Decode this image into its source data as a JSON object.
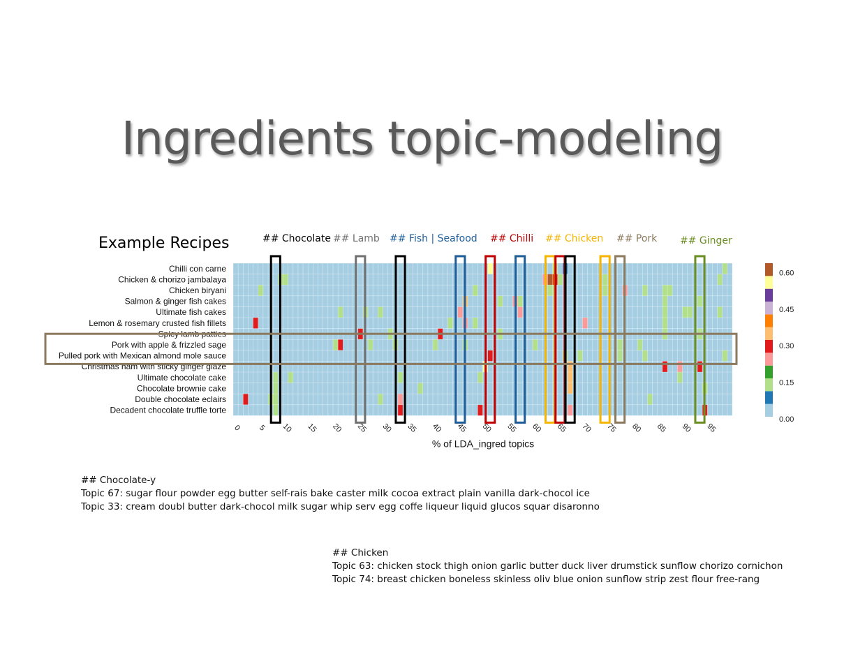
{
  "page": {
    "title": "Ingredients topic-modeling",
    "subtitle": "Example Recipes"
  },
  "topic_groups": [
    {
      "label": "## Chocolate",
      "color": "#000000",
      "left": 376
    },
    {
      "label": "## Lamb",
      "color": "#707070",
      "left": 477
    },
    {
      "label": "## Fish | Seafood",
      "color": "#1f5d99",
      "left": 558
    },
    {
      "label": "## Chilli",
      "color": "#c00000",
      "left": 702
    },
    {
      "label": "## Chicken",
      "color": "#f5b400",
      "left": 781
    },
    {
      "label": "## Pork",
      "color": "#8b7a5e",
      "left": 883
    },
    {
      "label": "## Ginger",
      "color": "#6b8e23",
      "left": 974
    }
  ],
  "notes": {
    "chocolate": {
      "heading": "## Chocolate-y",
      "lines": [
        "Topic 67: sugar flour powder egg butter self-rais bake caster milk cocoa extract plain vanilla dark-chocol ice",
        "Topic 33: cream doubl butter dark-chocol milk sugar whip serv egg coffe liqueur liquid glucos squar disaronno"
      ]
    },
    "chicken": {
      "heading": "## Chicken",
      "lines": [
        "Topic 63: chicken stock thigh onion garlic butter duck liver drumstick sunflow chorizo cornichon",
        "Topic 74: breast chicken boneless skinless oliv blue onion sunflow strip zest flour free-rang"
      ]
    }
  },
  "chart_data": {
    "type": "heatmap",
    "xlabel": "% of LDA_ingred topics",
    "x_ticks": [
      0,
      5,
      10,
      15,
      20,
      25,
      30,
      35,
      40,
      45,
      50,
      55,
      60,
      65,
      70,
      75,
      80,
      85,
      90,
      95
    ],
    "n_topics": 100,
    "recipes": [
      "Chilli con carne",
      "Chicken & chorizo jambalaya",
      "Chicken biryani",
      "Salmon & ginger fish cakes",
      "Ultimate fish cakes",
      "Lemon & rosemary crusted fish fillets",
      "Spicy lamb patties",
      "Pork with apple & frizzled sage",
      "Pulled pork with Mexican almond mole sauce",
      "Christmas ham with sticky ginger glaze",
      "Ultimate chocolate cake",
      "Chocolate brownie cake",
      "Double chocolate eclairs",
      "Decadent chocolate truffle torte"
    ],
    "legend": {
      "ticks": [
        0.6,
        0.45,
        0.3,
        0.15,
        0.0
      ],
      "tick_labels": [
        "0.60",
        "0.45",
        "0.30",
        "0.15",
        "0.00"
      ],
      "colors": [
        "#a6cee3",
        "#1f78b4",
        "#b2df8a",
        "#33a02c",
        "#fb9a99",
        "#e31a1c",
        "#fdbf6f",
        "#ff7f00",
        "#cab2d6",
        "#6a3d9a",
        "#ffff99",
        "#b15928"
      ]
    },
    "cells": [
      {
        "row": 0,
        "topic": 51,
        "value": 0.5
      },
      {
        "row": 0,
        "topic": 64,
        "value": 0.1
      },
      {
        "row": 0,
        "topic": 66,
        "value": 0.08
      },
      {
        "row": 0,
        "topic": 98,
        "value": 0.1
      },
      {
        "row": 1,
        "topic": 9,
        "value": 0.15
      },
      {
        "row": 1,
        "topic": 10,
        "value": 0.1
      },
      {
        "row": 1,
        "topic": 62,
        "value": 0.2
      },
      {
        "row": 1,
        "topic": 63,
        "value": 0.55
      },
      {
        "row": 1,
        "topic": 64,
        "value": 0.3
      },
      {
        "row": 1,
        "topic": 65,
        "value": 0.15
      },
      {
        "row": 1,
        "topic": 74,
        "value": 0.1
      },
      {
        "row": 1,
        "topic": 97,
        "value": 0.15
      },
      {
        "row": 2,
        "topic": 5,
        "value": 0.1
      },
      {
        "row": 2,
        "topic": 48,
        "value": 0.1
      },
      {
        "row": 2,
        "topic": 63,
        "value": 0.15
      },
      {
        "row": 2,
        "topic": 74,
        "value": 0.1
      },
      {
        "row": 2,
        "topic": 78,
        "value": 0.2
      },
      {
        "row": 2,
        "topic": 82,
        "value": 0.1
      },
      {
        "row": 2,
        "topic": 86,
        "value": 0.1
      },
      {
        "row": 2,
        "topic": 87,
        "value": 0.15
      },
      {
        "row": 3,
        "topic": 46,
        "value": 0.35
      },
      {
        "row": 3,
        "topic": 53,
        "value": 0.1
      },
      {
        "row": 3,
        "topic": 56,
        "value": 0.2
      },
      {
        "row": 3,
        "topic": 57,
        "value": 0.1
      },
      {
        "row": 3,
        "topic": 86,
        "value": 0.1
      },
      {
        "row": 3,
        "topic": 93,
        "value": 0.1
      },
      {
        "row": 4,
        "topic": 21,
        "value": 0.15
      },
      {
        "row": 4,
        "topic": 26,
        "value": 0.1
      },
      {
        "row": 4,
        "topic": 29,
        "value": 0.1
      },
      {
        "row": 4,
        "topic": 45,
        "value": 0.2
      },
      {
        "row": 4,
        "topic": 57,
        "value": 0.2
      },
      {
        "row": 4,
        "topic": 86,
        "value": 0.1
      },
      {
        "row": 4,
        "topic": 90,
        "value": 0.15
      },
      {
        "row": 4,
        "topic": 91,
        "value": 0.15
      },
      {
        "row": 4,
        "topic": 97,
        "value": 0.1
      },
      {
        "row": 5,
        "topic": 4,
        "value": 0.3
      },
      {
        "row": 5,
        "topic": 43,
        "value": 0.15
      },
      {
        "row": 5,
        "topic": 46,
        "value": 0.2
      },
      {
        "row": 5,
        "topic": 48,
        "value": 0.15
      },
      {
        "row": 5,
        "topic": 70,
        "value": 0.2
      },
      {
        "row": 5,
        "topic": 86,
        "value": 0.1
      },
      {
        "row": 6,
        "topic": 25,
        "value": 0.25
      },
      {
        "row": 6,
        "topic": 31,
        "value": 0.1
      },
      {
        "row": 6,
        "topic": 41,
        "value": 0.25
      },
      {
        "row": 6,
        "topic": 53,
        "value": 0.1
      },
      {
        "row": 6,
        "topic": 86,
        "value": 0.1
      },
      {
        "row": 6,
        "topic": 93,
        "value": 0.1
      },
      {
        "row": 7,
        "topic": 20,
        "value": 0.1
      },
      {
        "row": 7,
        "topic": 21,
        "value": 0.25
      },
      {
        "row": 7,
        "topic": 27,
        "value": 0.1
      },
      {
        "row": 7,
        "topic": 32,
        "value": 0.1
      },
      {
        "row": 7,
        "topic": 40,
        "value": 0.15
      },
      {
        "row": 7,
        "topic": 46,
        "value": 0.1
      },
      {
        "row": 7,
        "topic": 60,
        "value": 0.1
      },
      {
        "row": 7,
        "topic": 77,
        "value": 0.1
      },
      {
        "row": 7,
        "topic": 81,
        "value": 0.15
      },
      {
        "row": 8,
        "topic": 51,
        "value": 0.3
      },
      {
        "row": 8,
        "topic": 66,
        "value": 0.1
      },
      {
        "row": 8,
        "topic": 69,
        "value": 0.1
      },
      {
        "row": 8,
        "topic": 77,
        "value": 0.1
      },
      {
        "row": 8,
        "topic": 82,
        "value": 0.1
      },
      {
        "row": 8,
        "topic": 98,
        "value": 0.15
      },
      {
        "row": 9,
        "topic": 50,
        "value": 0.5
      },
      {
        "row": 9,
        "topic": 67,
        "value": 0.35
      },
      {
        "row": 9,
        "topic": 86,
        "value": 0.3
      },
      {
        "row": 9,
        "topic": 89,
        "value": 0.2
      },
      {
        "row": 9,
        "topic": 93,
        "value": 0.3
      },
      {
        "row": 10,
        "topic": 8,
        "value": 0.15
      },
      {
        "row": 10,
        "topic": 11,
        "value": 0.1
      },
      {
        "row": 10,
        "topic": 33,
        "value": 0.15
      },
      {
        "row": 10,
        "topic": 49,
        "value": 0.1
      },
      {
        "row": 10,
        "topic": 67,
        "value": 0.35
      },
      {
        "row": 10,
        "topic": 89,
        "value": 0.15
      },
      {
        "row": 11,
        "topic": 8,
        "value": 0.15
      },
      {
        "row": 11,
        "topic": 37,
        "value": 0.1
      },
      {
        "row": 11,
        "topic": 67,
        "value": 0.35
      },
      {
        "row": 11,
        "topic": 94,
        "value": 0.15
      },
      {
        "row": 12,
        "topic": 2,
        "value": 0.3
      },
      {
        "row": 12,
        "topic": 7,
        "value": 0.1
      },
      {
        "row": 12,
        "topic": 8,
        "value": 0.15
      },
      {
        "row": 12,
        "topic": 29,
        "value": 0.15
      },
      {
        "row": 12,
        "topic": 33,
        "value": 0.2
      },
      {
        "row": 12,
        "topic": 83,
        "value": 0.15
      },
      {
        "row": 13,
        "topic": 8,
        "value": 0.15
      },
      {
        "row": 13,
        "topic": 33,
        "value": 0.25
      },
      {
        "row": 13,
        "topic": 49,
        "value": 0.25
      },
      {
        "row": 13,
        "topic": 67,
        "value": 0.2
      },
      {
        "row": 13,
        "topic": 94,
        "value": 0.25
      }
    ],
    "highlight_topics": [
      {
        "group": "## Chocolate",
        "topic": 8,
        "color": "#000000"
      },
      {
        "group": "## Lamb",
        "topic": 25,
        "color": "#707070"
      },
      {
        "group": "## Chocolate",
        "topic": 33,
        "color": "#000000"
      },
      {
        "group": "## Fish | Seafood",
        "topic": 45,
        "color": "#1f5d99"
      },
      {
        "group": "## Chilli",
        "topic": 51,
        "color": "#c00000"
      },
      {
        "group": "## Fish | Seafood",
        "topic": 57,
        "color": "#1f5d99"
      },
      {
        "group": "## Chicken",
        "topic": 63,
        "color": "#f5b400"
      },
      {
        "group": "## Chilli",
        "topic": 65,
        "color": "#c00000"
      },
      {
        "group": "## Chocolate",
        "topic": 67,
        "color": "#000000"
      },
      {
        "group": "## Chicken",
        "topic": 74,
        "color": "#f5b400"
      },
      {
        "group": "## Pork",
        "topic": 77,
        "color": "#8b7a5e"
      },
      {
        "group": "## Ginger",
        "topic": 93,
        "color": "#6b8e23"
      }
    ],
    "highlight_rows": [
      {
        "group": "## Pork",
        "rows": [
          7,
          8
        ],
        "color": "#8b7a5e"
      }
    ]
  }
}
